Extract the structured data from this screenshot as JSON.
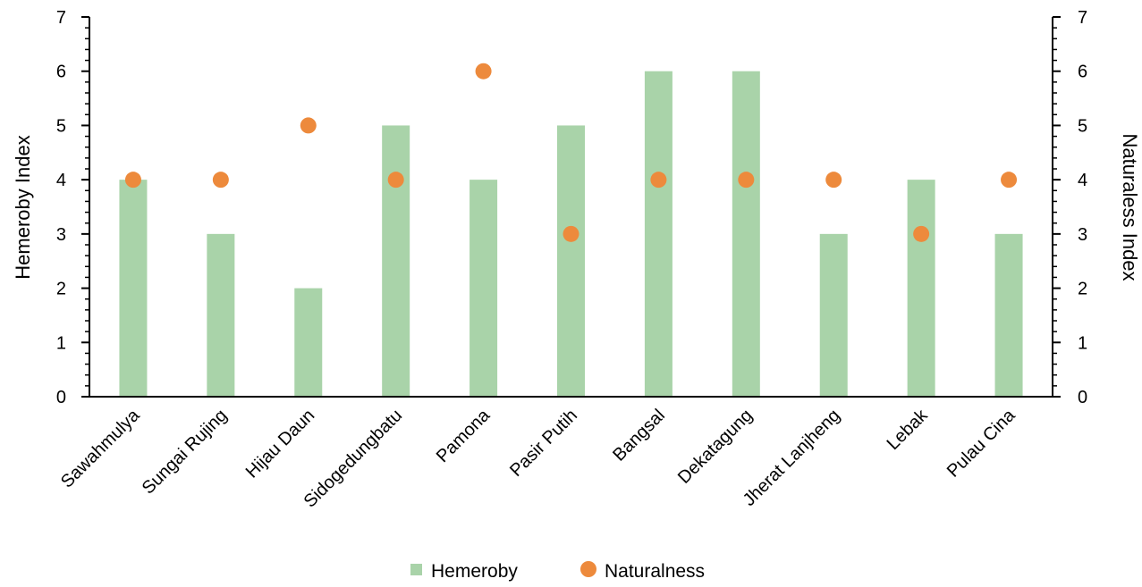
{
  "chart_data": {
    "type": "bar",
    "categories": [
      "Sawahmulya",
      "Sungai Rujing",
      "Hijau Daun",
      "Sidogedungbatu",
      "Pamona",
      "Pasir Putih",
      "Bangsal",
      "Dekatagung",
      "Jherat Lanjheng",
      "Lebak",
      "Pulau Cina"
    ],
    "series": [
      {
        "name": "Hemeroby",
        "type": "bar",
        "axis": "left",
        "color": "#a9d3a9",
        "values": [
          4,
          3,
          2,
          5,
          4,
          5,
          6,
          6,
          3,
          4,
          3
        ]
      },
      {
        "name": "Naturalness",
        "type": "scatter",
        "axis": "right",
        "color": "#ed8a3c",
        "values": [
          4,
          4,
          5,
          4,
          6,
          3,
          4,
          4,
          4,
          3,
          4
        ]
      }
    ],
    "ylabel": "Hemeroby Index",
    "y2label": "Naturaless Index",
    "ylim": [
      0,
      7
    ],
    "y2lim": [
      0,
      7
    ],
    "yticks": [
      "0",
      "1",
      "2",
      "3",
      "4",
      "5",
      "6",
      "7"
    ],
    "y2ticks": [
      "0",
      "1",
      "2",
      "3",
      "4",
      "5",
      "6",
      "7"
    ],
    "grid": false,
    "legend_position": "bottom"
  }
}
